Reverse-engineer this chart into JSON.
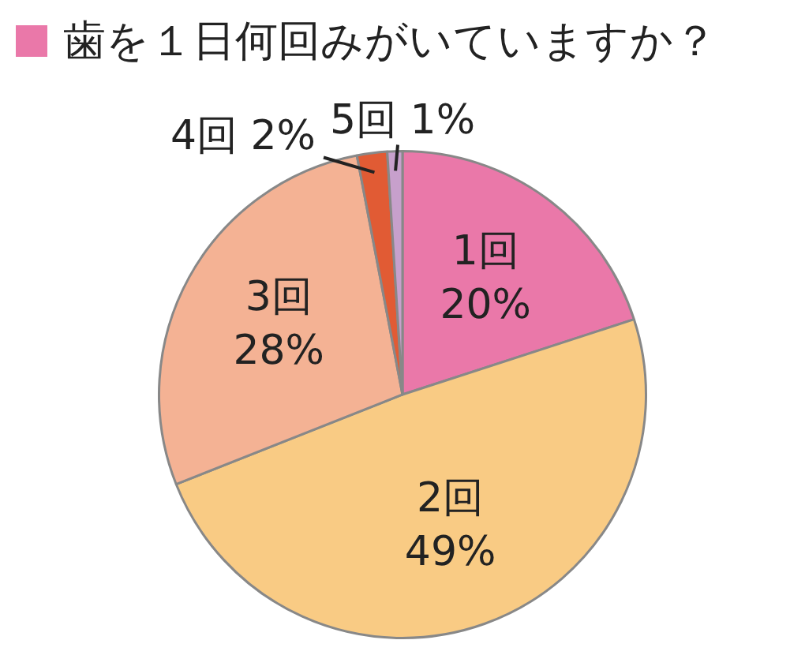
{
  "chart_data": {
    "type": "pie",
    "title": "歯を１日何回みがいていますか？",
    "categories": [
      "1回",
      "2回",
      "3回",
      "4回",
      "5回"
    ],
    "values": [
      20,
      49,
      28,
      2,
      1
    ],
    "value_labels": [
      "20%",
      "49%",
      "28%",
      "2%",
      "1%"
    ],
    "colors": [
      "#ea78a9",
      "#f9cb84",
      "#f4b294",
      "#e15b34",
      "#c7a0cc"
    ],
    "legend": false
  }
}
